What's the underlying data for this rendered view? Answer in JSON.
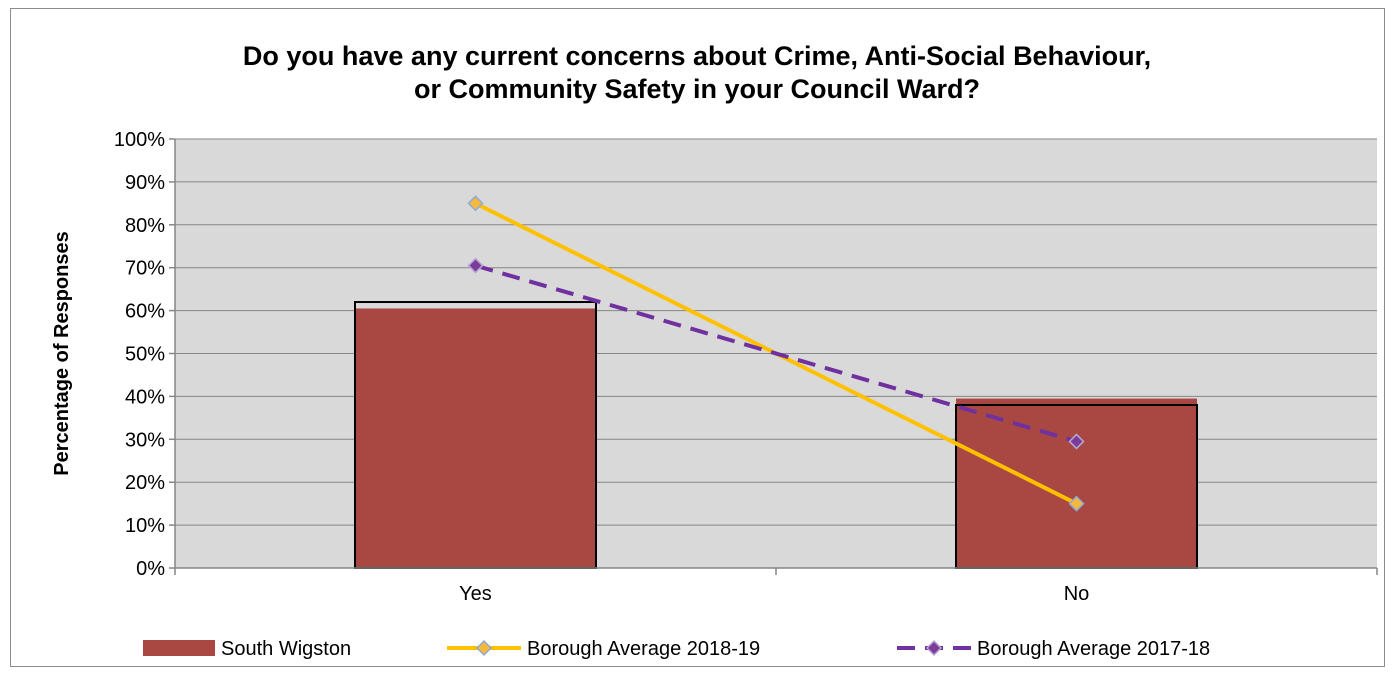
{
  "chart_data": {
    "type": "bar",
    "title_lines": [
      "Do you have any current concerns about Crime, Anti-Social Behaviour,",
      "or Community Safety in your Council Ward?"
    ],
    "xlabel": "",
    "ylabel": "Percentage of Responses",
    "categories": [
      "Yes",
      "No"
    ],
    "ylim": [
      0,
      100
    ],
    "ytick_values": [
      0,
      10,
      20,
      30,
      40,
      50,
      60,
      70,
      80,
      90,
      100
    ],
    "ytick_labels": [
      "0%",
      "10%",
      "20%",
      "30%",
      "40%",
      "50%",
      "60%",
      "70%",
      "80%",
      "90%",
      "100%"
    ],
    "grid": true,
    "legend_position": "bottom",
    "series": [
      {
        "name": "South Wigston",
        "kind": "bar",
        "values": [
          60.5,
          39.5
        ],
        "color": "#a94843"
      },
      {
        "name": "Borough Average 2018-19",
        "kind": "line",
        "values": [
          85,
          15
        ],
        "color": "#ffc000",
        "marker": "diamond",
        "marker_color": "#f5b93c",
        "marker_edge": "#8ea9db",
        "dash": false
      },
      {
        "name": "Borough Average 2017-18",
        "kind": "line",
        "values": [
          70.5,
          29.5
        ],
        "color": "#7030a0",
        "marker": "diamond",
        "marker_color": "#7d3c98",
        "marker_edge": "#b4a7d6",
        "dash": true
      }
    ],
    "outline_values": [
      62,
      38
    ],
    "plot_background": "#d9d9d9",
    "gridline_color": "#868686"
  }
}
